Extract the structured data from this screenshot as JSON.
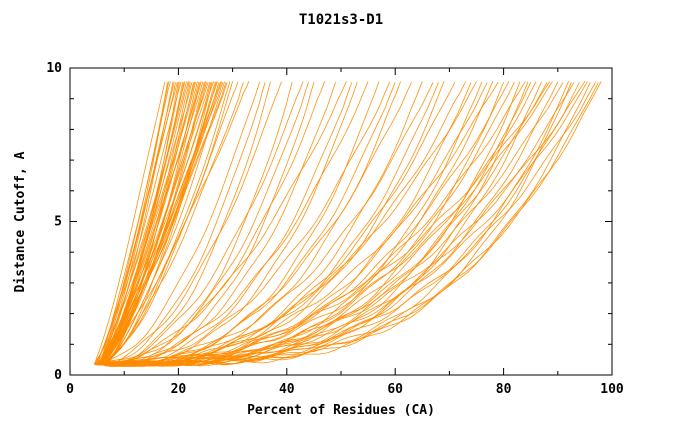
{
  "chart_data": {
    "type": "line",
    "title": "T1021s3-D1",
    "xlabel": "Percent of Residues (CA)",
    "ylabel": "Distance Cutoff, A",
    "xlim": [
      0,
      100
    ],
    "ylim": [
      0,
      10
    ],
    "grid": false,
    "legend": "none",
    "line_color": "#ff8c00",
    "axis_color": "#000000",
    "background": "#ffffff",
    "x_ticks_major": {
      "values": [
        0,
        20,
        40,
        60,
        80,
        100
      ],
      "labels": [
        "0",
        "20",
        "40",
        "60",
        "80",
        "100"
      ]
    },
    "x_ticks_minor": [
      10,
      30,
      50,
      70,
      90
    ],
    "y_ticks_major": {
      "values": [
        0,
        5,
        10
      ],
      "labels": [
        "0",
        "5",
        "10"
      ]
    },
    "y_ticks_minor": [
      1,
      2,
      3,
      4,
      6,
      7,
      8,
      9
    ],
    "series_description": "Each curve is one predicted model: cumulative percent of CA residues (x) under distance cutoff in Angstroms (y). Curves rise from ~(5, 0.35) to (x_end, 9.55). Encoded as [x_start, x_end, shape_exponent].",
    "y_start": 0.35,
    "y_end": 9.55,
    "wiggle": {
      "amp": 0.07,
      "freq": 0.55,
      "phase_step": 1.7
    },
    "curves": [
      [
        4.5,
        17.5,
        1.15
      ],
      [
        5.0,
        18,
        1.3
      ],
      [
        5.5,
        18.5,
        1.1
      ],
      [
        4.8,
        19,
        1.45
      ],
      [
        5.2,
        19.5,
        1.2
      ],
      [
        6.0,
        20,
        1.5
      ],
      [
        4.6,
        20.5,
        1.25
      ],
      [
        5.4,
        21,
        1.4
      ],
      [
        5.8,
        21.5,
        1.15
      ],
      [
        5.0,
        22,
        1.55
      ],
      [
        4.4,
        22.5,
        1.3
      ],
      [
        5.6,
        23,
        1.2
      ],
      [
        6.2,
        23.5,
        1.5
      ],
      [
        4.9,
        24,
        1.35
      ],
      [
        5.3,
        24.5,
        1.18
      ],
      [
        5.7,
        25,
        1.5
      ],
      [
        4.7,
        25.5,
        1.28
      ],
      [
        5.1,
        26,
        1.42
      ],
      [
        6.1,
        26.5,
        1.2
      ],
      [
        5.5,
        27,
        1.55
      ],
      [
        4.6,
        27.5,
        1.32
      ],
      [
        5.9,
        28,
        1.22
      ],
      [
        5.2,
        28.5,
        1.48
      ],
      [
        4.8,
        29,
        1.3
      ],
      [
        5.4,
        30,
        1.6
      ],
      [
        6.3,
        31,
        1.35
      ],
      [
        5.0,
        32,
        1.5
      ],
      [
        5.6,
        33,
        1.25
      ],
      [
        4.5,
        18.2,
        1.4
      ],
      [
        5.8,
        19.2,
        1.18
      ],
      [
        5.2,
        20.2,
        1.5
      ],
      [
        4.9,
        21.2,
        1.3
      ],
      [
        5.5,
        22.2,
        1.6
      ],
      [
        6.0,
        23.2,
        1.2
      ],
      [
        4.7,
        24.2,
        1.5
      ],
      [
        5.3,
        25.2,
        1.32
      ],
      [
        5.7,
        26.2,
        1.62
      ],
      [
        5.1,
        27.2,
        1.4
      ],
      [
        4.6,
        28.2,
        1.22
      ],
      [
        5.9,
        29.5,
        1.52
      ],
      [
        5.05,
        19.8,
        1.12
      ],
      [
        5.45,
        20.8,
        1.44
      ],
      [
        5.85,
        21.8,
        1.26
      ],
      [
        4.65,
        22.8,
        1.58
      ],
      [
        5.25,
        23.8,
        1.3
      ],
      [
        5.65,
        24.8,
        1.5
      ],
      [
        6.05,
        25.8,
        1.2
      ],
      [
        4.85,
        26.8,
        1.46
      ],
      [
        5.15,
        27.8,
        1.34
      ],
      [
        5.55,
        28.8,
        1.24
      ],
      [
        5.2,
        35,
        1.8
      ],
      [
        5.6,
        37,
        2.2
      ],
      [
        4.8,
        39,
        1.9
      ],
      [
        6.0,
        41,
        2.4
      ],
      [
        5.0,
        43,
        2.0
      ],
      [
        5.4,
        45,
        2.6
      ],
      [
        5.8,
        47,
        2.1
      ],
      [
        4.6,
        49,
        2.5
      ],
      [
        5.2,
        51,
        1.9
      ],
      [
        5.6,
        53,
        2.7
      ],
      [
        5.0,
        55,
        2.2
      ],
      [
        6.2,
        57,
        2.8
      ],
      [
        4.9,
        59,
        2.3
      ],
      [
        5.3,
        61,
        2.9
      ],
      [
        5.7,
        63,
        2.4
      ],
      [
        5.1,
        65,
        3.0
      ],
      [
        4.7,
        67,
        2.5
      ],
      [
        5.5,
        69,
        3.1
      ],
      [
        5.9,
        71,
        2.6
      ],
      [
        5.3,
        36,
        2.0
      ],
      [
        4.8,
        44,
        2.3
      ],
      [
        5.6,
        52,
        2.5
      ],
      [
        5.0,
        60,
        2.7
      ],
      [
        6.0,
        68,
        2.9
      ],
      [
        5.4,
        73,
        2.6
      ],
      [
        4.9,
        74,
        3.2
      ],
      [
        5.7,
        75,
        2.4
      ],
      [
        5.1,
        76,
        3.5
      ],
      [
        5.5,
        77,
        2.8
      ],
      [
        6.1,
        78,
        3.3
      ],
      [
        4.7,
        79,
        2.5
      ],
      [
        5.3,
        80,
        3.6
      ],
      [
        5.8,
        81,
        2.7
      ],
      [
        5.0,
        82,
        3.1
      ],
      [
        5.6,
        83,
        3.8
      ],
      [
        4.8,
        84,
        2.6
      ],
      [
        5.2,
        85,
        3.4
      ],
      [
        6.0,
        86,
        2.9
      ],
      [
        5.4,
        87,
        3.7
      ],
      [
        4.6,
        88,
        3.0
      ],
      [
        5.8,
        89,
        2.5
      ],
      [
        5.1,
        90,
        3.5
      ],
      [
        5.5,
        91,
        2.8
      ],
      [
        4.9,
        92,
        3.9
      ],
      [
        5.3,
        93,
        3.0
      ],
      [
        5.7,
        94,
        3.4
      ],
      [
        5.0,
        95,
        2.7
      ],
      [
        6.2,
        96,
        3.8
      ],
      [
        5.4,
        97,
        3.1
      ],
      [
        4.8,
        98,
        3.5
      ],
      [
        5.6,
        84.5,
        4.0
      ],
      [
        5.2,
        88.5,
        2.4
      ],
      [
        5.0,
        92.5,
        4.2
      ],
      [
        5.8,
        95.5,
        2.9
      ],
      [
        5.3,
        97.5,
        3.6
      ]
    ]
  }
}
